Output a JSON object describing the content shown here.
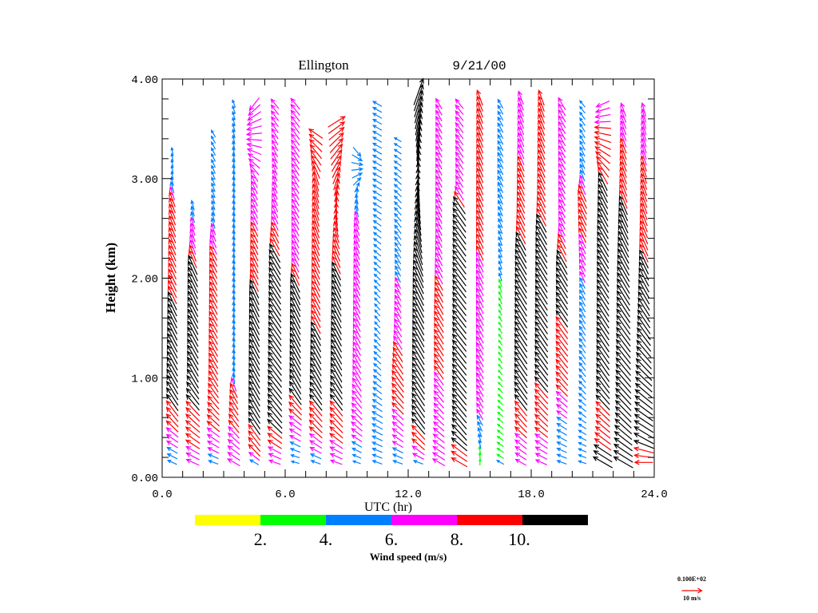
{
  "chart_data": {
    "type": "wind-profile-vectors",
    "title_station": "Ellington",
    "title_date": "9/21/00",
    "xlabel": "UTC (hr)",
    "ylabel": "Height (km)",
    "xlim": [
      0,
      24
    ],
    "ylim": [
      0,
      4
    ],
    "x_ticks": [
      "0.0",
      "6.0",
      "12.0",
      "18.0",
      "24.0"
    ],
    "x_tick_values": [
      0,
      6,
      12,
      18,
      24
    ],
    "y_ticks": [
      "0.00",
      "1.00",
      "2.00",
      "3.00",
      "4.00"
    ],
    "y_tick_values": [
      0,
      1,
      2,
      3,
      4
    ],
    "colorbar": {
      "label": "Wind speed (m/s)",
      "tick_labels": [
        "2.",
        "4.",
        "6.",
        "8.",
        "10."
      ],
      "colors": [
        "#ffff00",
        "#00ff00",
        "#0080ff",
        "#ff00ff",
        "#ff0000",
        "#000000"
      ],
      "bounds": [
        0,
        2,
        4,
        6,
        8,
        10,
        12
      ]
    },
    "reference_vector": {
      "value_label": "0.100E+02",
      "unit_label": "10 m/s",
      "speed": 10,
      "color": "#ff0000"
    },
    "height_step_km": 0.06,
    "columns_note": "each column: hour, bottom/top km, knots [height_km, speed_m_s, direction_toward_deg]",
    "columns": [
      {
        "hour": 0.5,
        "bottom": 0.15,
        "top": 3.3,
        "knots": [
          [
            0.15,
            5,
            295
          ],
          [
            0.4,
            7,
            305
          ],
          [
            0.6,
            9,
            320
          ],
          [
            0.9,
            11,
            330
          ],
          [
            1.8,
            10,
            335
          ],
          [
            2.0,
            9,
            335
          ],
          [
            2.8,
            8,
            340
          ],
          [
            3.0,
            4,
            350
          ],
          [
            3.3,
            4,
            350
          ]
        ]
      },
      {
        "hour": 1.5,
        "bottom": 0.15,
        "top": 2.75,
        "knots": [
          [
            0.15,
            7,
            295
          ],
          [
            0.5,
            9,
            310
          ],
          [
            1.0,
            11,
            330
          ],
          [
            2.1,
            11,
            335
          ],
          [
            2.3,
            8,
            340
          ],
          [
            2.7,
            5,
            345
          ]
        ]
      },
      {
        "hour": 2.5,
        "bottom": 0.15,
        "top": 3.45,
        "knots": [
          [
            0.15,
            5,
            290
          ],
          [
            0.5,
            8,
            310
          ],
          [
            1.0,
            9,
            330
          ],
          [
            2.3,
            8,
            335
          ],
          [
            2.6,
            5,
            345
          ],
          [
            3.4,
            4,
            330
          ]
        ]
      },
      {
        "hour": 3.5,
        "bottom": 0.15,
        "top": 3.8,
        "knots": [
          [
            0.15,
            7,
            300
          ],
          [
            0.5,
            8,
            320
          ],
          [
            0.9,
            8,
            335
          ],
          [
            1.0,
            5,
            355
          ],
          [
            3.0,
            5,
            355
          ],
          [
            3.8,
            4,
            340
          ]
        ]
      },
      {
        "hour": 4.5,
        "bottom": 0.15,
        "top": 3.8,
        "knots": [
          [
            0.15,
            5,
            300
          ],
          [
            0.3,
            9,
            320
          ],
          [
            0.7,
            11,
            330
          ],
          [
            1.8,
            11,
            335
          ],
          [
            2.0,
            9,
            335
          ],
          [
            3.0,
            7,
            335
          ],
          [
            3.8,
            8,
            210
          ]
        ]
      },
      {
        "hour": 5.5,
        "bottom": 0.15,
        "top": 3.8,
        "knots": [
          [
            0.15,
            6,
            290
          ],
          [
            0.6,
            11,
            320
          ],
          [
            2.2,
            11,
            330
          ],
          [
            2.5,
            8,
            335
          ],
          [
            3.0,
            6,
            340
          ],
          [
            3.8,
            6,
            320
          ]
        ]
      },
      {
        "hour": 6.5,
        "bottom": 0.15,
        "top": 3.8,
        "knots": [
          [
            0.15,
            4,
            285
          ],
          [
            0.6,
            8,
            310
          ],
          [
            0.9,
            11,
            330
          ],
          [
            1.9,
            11,
            335
          ],
          [
            2.1,
            8,
            335
          ],
          [
            3.0,
            7,
            330
          ],
          [
            3.8,
            7,
            320
          ]
        ]
      },
      {
        "hour": 7.5,
        "bottom": 0.15,
        "top": 3.5,
        "knots": [
          [
            0.15,
            5,
            290
          ],
          [
            0.5,
            9,
            315
          ],
          [
            1.0,
            11,
            330
          ],
          [
            2.0,
            9,
            335
          ],
          [
            3.0,
            10,
            345
          ],
          [
            3.5,
            8,
            300
          ]
        ]
      },
      {
        "hour": 8.5,
        "bottom": 0.15,
        "top": 3.6,
        "knots": [
          [
            0.15,
            6,
            290
          ],
          [
            0.5,
            9,
            315
          ],
          [
            1.0,
            11,
            330
          ],
          [
            2.1,
            10,
            335
          ],
          [
            2.4,
            8,
            340
          ],
          [
            3.6,
            10,
            60
          ]
        ]
      },
      {
        "hour": 9.5,
        "bottom": 0.15,
        "top": 3.3,
        "knots": [
          [
            0.15,
            4,
            290
          ],
          [
            0.5,
            7,
            310
          ],
          [
            1.0,
            8,
            330
          ],
          [
            2.5,
            7,
            340
          ],
          [
            2.8,
            5,
            350
          ],
          [
            3.3,
            6,
            150
          ]
        ]
      },
      {
        "hour": 10.5,
        "bottom": 0.15,
        "top": 3.8,
        "knots": [
          [
            0.15,
            5,
            290
          ],
          [
            0.6,
            6,
            300
          ],
          [
            1.0,
            5,
            310
          ],
          [
            1.6,
            4,
            320
          ],
          [
            2.9,
            5,
            300
          ],
          [
            3.8,
            5,
            300
          ]
        ]
      },
      {
        "hour": 11.5,
        "bottom": 0.15,
        "top": 3.4,
        "knots": [
          [
            0.15,
            5,
            290
          ],
          [
            0.5,
            7,
            310
          ],
          [
            1.0,
            10,
            325
          ],
          [
            1.5,
            7,
            330
          ],
          [
            2.0,
            6,
            335
          ],
          [
            3.4,
            4,
            300
          ]
        ]
      },
      {
        "hour": 12.5,
        "bottom": 0.15,
        "top": 3.9,
        "knots": [
          [
            0.15,
            5,
            290
          ],
          [
            0.3,
            8,
            310
          ],
          [
            0.6,
            11,
            325
          ],
          [
            2.0,
            12,
            335
          ],
          [
            3.9,
            14,
            20
          ]
        ]
      },
      {
        "hour": 13.5,
        "bottom": 0.15,
        "top": 3.8,
        "knots": [
          [
            0.15,
            7,
            300
          ],
          [
            0.6,
            7,
            315
          ],
          [
            1.0,
            8,
            325
          ],
          [
            1.6,
            9,
            330
          ],
          [
            2.4,
            7,
            335
          ],
          [
            3.8,
            6,
            330
          ]
        ]
      },
      {
        "hour": 14.5,
        "bottom": 0.15,
        "top": 3.8,
        "knots": [
          [
            0.15,
            9,
            300
          ],
          [
            0.5,
            11,
            320
          ],
          [
            2.7,
            11,
            325
          ],
          [
            2.9,
            7,
            330
          ],
          [
            3.8,
            6,
            320
          ]
        ]
      },
      {
        "hour": 15.5,
        "bottom": 0.15,
        "top": 3.85,
        "knots": [
          [
            0.15,
            3,
            0
          ],
          [
            0.6,
            6,
            330
          ],
          [
            1.0,
            7,
            330
          ],
          [
            2.2,
            8,
            335
          ],
          [
            3.8,
            8,
            340
          ]
        ]
      },
      {
        "hour": 16.5,
        "bottom": 0.15,
        "top": 3.8,
        "knots": [
          [
            0.15,
            4,
            300
          ],
          [
            1.0,
            3,
            320
          ],
          [
            1.6,
            3,
            330
          ],
          [
            2.0,
            4,
            340
          ],
          [
            3.0,
            6,
            335
          ],
          [
            3.8,
            5,
            330
          ]
        ]
      },
      {
        "hour": 17.5,
        "bottom": 0.15,
        "top": 3.85,
        "knots": [
          [
            0.15,
            6,
            300
          ],
          [
            0.6,
            9,
            320
          ],
          [
            0.9,
            11,
            325
          ],
          [
            2.2,
            11,
            330
          ],
          [
            2.6,
            9,
            335
          ],
          [
            3.8,
            7,
            340
          ]
        ]
      },
      {
        "hour": 18.5,
        "bottom": 0.15,
        "top": 3.85,
        "knots": [
          [
            0.15,
            6,
            295
          ],
          [
            0.6,
            9,
            315
          ],
          [
            1.2,
            11,
            325
          ],
          [
            2.4,
            11,
            330
          ],
          [
            2.8,
            9,
            335
          ],
          [
            3.8,
            8,
            340
          ]
        ]
      },
      {
        "hour": 19.5,
        "bottom": 0.15,
        "top": 3.8,
        "knots": [
          [
            0.15,
            5,
            290
          ],
          [
            0.6,
            6,
            305
          ],
          [
            1.0,
            9,
            320
          ],
          [
            2.1,
            11,
            330
          ],
          [
            2.5,
            7,
            335
          ],
          [
            3.8,
            7,
            330
          ]
        ]
      },
      {
        "hour": 20.5,
        "bottom": 0.15,
        "top": 3.8,
        "knots": [
          [
            0.15,
            4,
            290
          ],
          [
            1.0,
            5,
            320
          ],
          [
            2.0,
            6,
            335
          ],
          [
            2.8,
            10,
            335
          ],
          [
            3.0,
            6,
            340
          ],
          [
            3.8,
            4,
            320
          ]
        ]
      },
      {
        "hour": 21.5,
        "bottom": 0.15,
        "top": 3.8,
        "knots": [
          [
            0.15,
            11,
            300
          ],
          [
            0.5,
            9,
            310
          ],
          [
            1.0,
            11,
            325
          ],
          [
            2.4,
            11,
            330
          ],
          [
            3.0,
            10,
            335
          ],
          [
            3.8,
            7,
            240
          ]
        ]
      },
      {
        "hour": 22.5,
        "bottom": 0.15,
        "top": 3.7,
        "knots": [
          [
            0.15,
            11,
            300
          ],
          [
            0.6,
            11,
            315
          ],
          [
            2.0,
            12,
            330
          ],
          [
            2.5,
            11,
            335
          ],
          [
            3.0,
            9,
            340
          ],
          [
            3.7,
            7,
            340
          ]
        ]
      },
      {
        "hour": 23.5,
        "bottom": 0.15,
        "top": 3.7,
        "knots": [
          [
            0.15,
            9,
            270
          ],
          [
            0.4,
            11,
            300
          ],
          [
            1.5,
            11,
            325
          ],
          [
            2.2,
            10,
            335
          ],
          [
            2.7,
            9,
            340
          ],
          [
            3.7,
            7,
            345
          ]
        ]
      }
    ]
  }
}
